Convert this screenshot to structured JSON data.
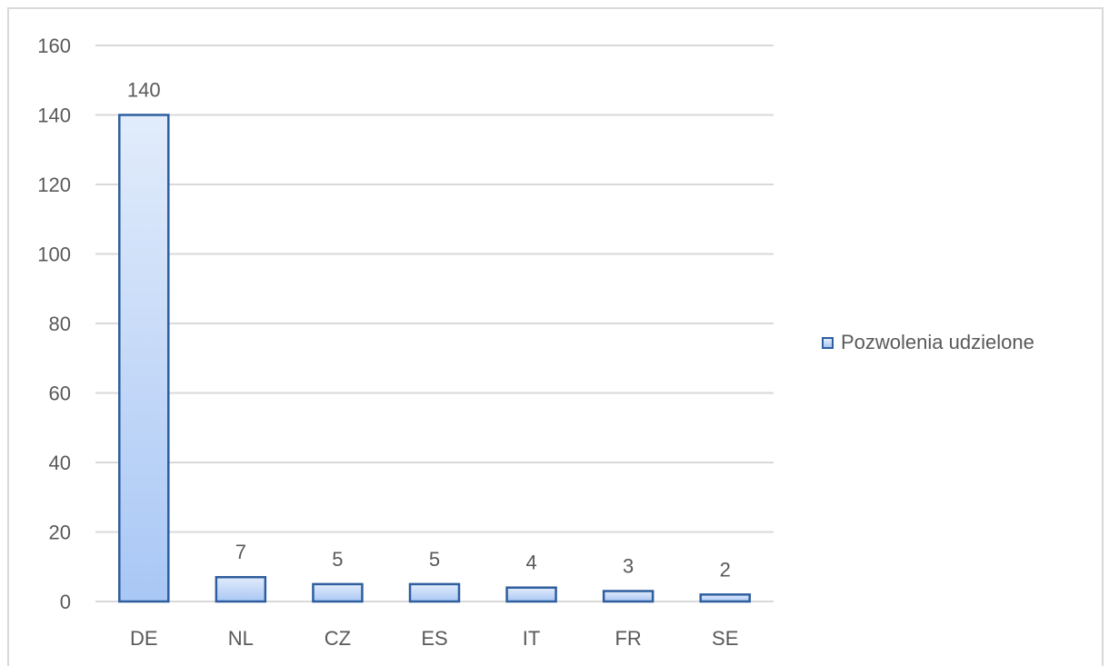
{
  "chart_data": {
    "type": "bar",
    "categories": [
      "DE",
      "NL",
      "CZ",
      "ES",
      "IT",
      "FR",
      "SE"
    ],
    "series": [
      {
        "name": "Pozwolenia udzielone",
        "values": [
          140,
          7,
          5,
          5,
          4,
          3,
          2
        ]
      }
    ],
    "data_labels": [
      "140",
      "7",
      "5",
      "5",
      "4",
      "3",
      "2"
    ],
    "y_ticks": [
      "0",
      "20",
      "40",
      "60",
      "80",
      "100",
      "120",
      "140",
      "160"
    ],
    "ylim": [
      0,
      160
    ],
    "grid": true,
    "legend_position": "right",
    "colors": {
      "bar_top": "#e2ecfb",
      "bar_bottom": "#a9c7f5",
      "bar_border": "#2e5e9e",
      "grid": "#d9d9d9",
      "text": "#595959"
    }
  }
}
